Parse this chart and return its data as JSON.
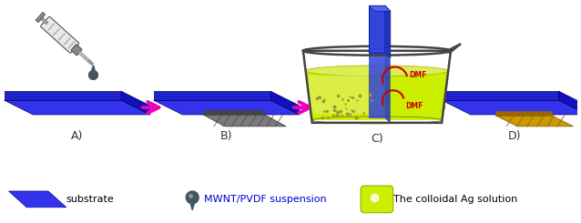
{
  "background_color": "#ffffff",
  "arrow_color": "#ee00bb",
  "blue_top": "#3333ee",
  "blue_side": "#1111bb",
  "blue_front": "#2222cc",
  "label_color": "#333333",
  "legend_substrate_text": "substrate",
  "legend_drop_text": "MWNT/PVDF suspension",
  "legend_colloidal_text": "The colloidal Ag solution",
  "beaker_liquid_color": "#ccee00",
  "dmf_text_color": "#cc0000",
  "glass_rod_color_top": "#4444ff",
  "glass_rod_color_side": "#2222cc",
  "film_gray": "#888888",
  "film_gray_dark": "#555555",
  "gold_color": "#cc9900",
  "gold_dark": "#886600",
  "label_fontsize": 9,
  "legend_fontsize": 8
}
